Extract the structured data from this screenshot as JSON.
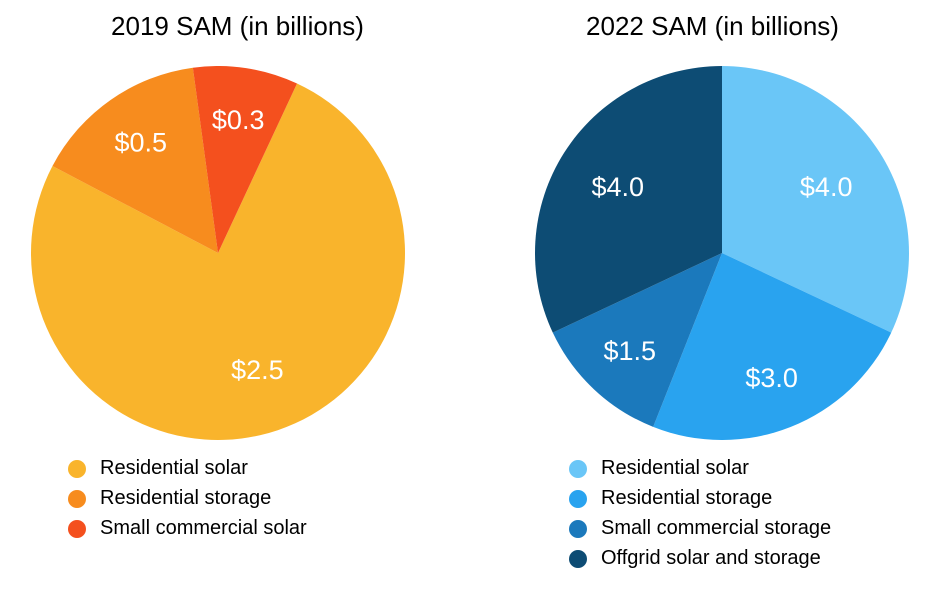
{
  "chart_data": [
    {
      "type": "pie",
      "title": "2019 SAM (in billions)",
      "legend_position": "bottom-left",
      "start_angle_deg": 25,
      "slices": [
        {
          "label": "Residential solar",
          "value": 2.5,
          "display_value": "$2.5",
          "color": "#F9B42C"
        },
        {
          "label": "Residential storage",
          "value": 0.5,
          "display_value": "$0.5",
          "color": "#F78C1E"
        },
        {
          "label": "Small commercial solar",
          "value": 0.3,
          "display_value": "$0.3",
          "color": "#F4501E"
        }
      ]
    },
    {
      "type": "pie",
      "title": "2022 SAM (in billions)",
      "legend_position": "bottom-left",
      "start_angle_deg": 0,
      "slices": [
        {
          "label": "Residential solar",
          "value": 4.0,
          "display_value": "$4.0",
          "color": "#6AC6F7"
        },
        {
          "label": "Residential storage",
          "value": 3.0,
          "display_value": "$3.0",
          "color": "#29A3EF"
        },
        {
          "label": "Small commercial storage",
          "value": 1.5,
          "display_value": "$1.5",
          "color": "#1B79BC"
        },
        {
          "label": "Offgrid solar and storage",
          "value": 4.0,
          "display_value": "$4.0",
          "color": "#0D4C74"
        }
      ]
    }
  ]
}
